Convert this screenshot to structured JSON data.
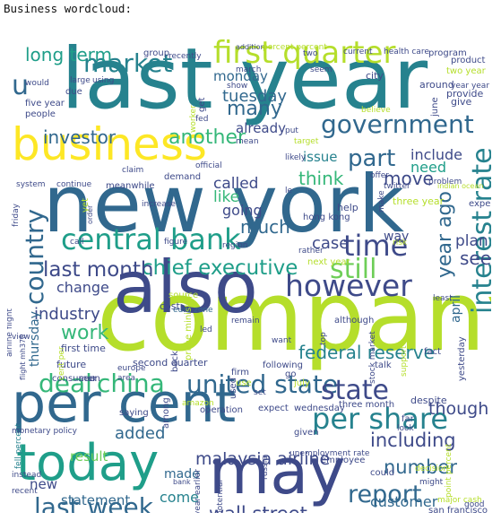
{
  "caption": "Business wordcloud:",
  "palette": [
    "#440154",
    "#482878",
    "#3e4a89",
    "#31688e",
    "#26828e",
    "#1f9e89",
    "#35b779",
    "#6ece58",
    "#b5de2b",
    "#fde725"
  ],
  "words": [
    {
      "text": "company",
      "c": "#b5de2b"
    },
    {
      "text": "last year",
      "c": "#26828e"
    },
    {
      "text": "new york",
      "c": "#31688e"
    },
    {
      "text": "also",
      "c": "#3e4a89"
    },
    {
      "text": "may",
      "c": "#3e4a89"
    },
    {
      "text": "per cent",
      "c": "#31688e"
    },
    {
      "text": "today",
      "c": "#1f9e89"
    },
    {
      "text": "business",
      "c": "#fde725"
    },
    {
      "text": "first quarter",
      "c": "#b5de2b"
    },
    {
      "text": "interest rate",
      "c": "#26828e"
    },
    {
      "text": "central bank",
      "c": "#1f9e89"
    },
    {
      "text": "market",
      "c": "#26828e"
    },
    {
      "text": "government",
      "c": "#31688e"
    },
    {
      "text": "however",
      "c": "#3e4a89"
    },
    {
      "text": "china",
      "c": "#35b779"
    },
    {
      "text": "united state",
      "c": "#31688e"
    },
    {
      "text": "per share",
      "c": "#26828e"
    },
    {
      "text": "country",
      "c": "#31688e"
    },
    {
      "text": "deal",
      "c": "#35b779"
    },
    {
      "text": "last week",
      "c": "#31688e"
    },
    {
      "text": "time",
      "c": "#3e4a89"
    },
    {
      "text": "chief executive",
      "c": "#1f9e89"
    },
    {
      "text": "still",
      "c": "#6ece58"
    },
    {
      "text": "part",
      "c": "#31688e"
    },
    {
      "text": "state",
      "c": "#3e4a89"
    },
    {
      "text": "report",
      "c": "#31688e"
    },
    {
      "text": "last month",
      "c": "#3e4a89"
    },
    {
      "text": "year ago",
      "c": "#31688e"
    },
    {
      "text": "investor",
      "c": "#31688e"
    },
    {
      "text": "another",
      "c": "#35b779"
    },
    {
      "text": "number",
      "c": "#31688e"
    },
    {
      "text": "including",
      "c": "#3e4a89"
    },
    {
      "text": "wall street",
      "c": "#3e4a89"
    },
    {
      "text": "work",
      "c": "#35b779"
    },
    {
      "text": "many",
      "c": "#31688e"
    },
    {
      "text": "long term",
      "c": "#1f9e89"
    },
    {
      "text": "tuesday",
      "c": "#31688e"
    },
    {
      "text": "malaysia airline",
      "c": "#3e4a89"
    },
    {
      "text": "federal reserve",
      "c": "#26828e"
    },
    {
      "text": "move",
      "c": "#3e4a89"
    },
    {
      "text": "think",
      "c": "#35b779"
    },
    {
      "text": "like",
      "c": "#35b779"
    },
    {
      "text": "much",
      "c": "#31688e"
    },
    {
      "text": "going",
      "c": "#3e4a89"
    },
    {
      "text": "called",
      "c": "#3e4a89"
    },
    {
      "text": "case",
      "c": "#3e4a89"
    },
    {
      "text": "see",
      "c": "#3e4a89"
    },
    {
      "text": "plan",
      "c": "#3e4a89"
    },
    {
      "text": "come",
      "c": "#26828e"
    },
    {
      "text": "added",
      "c": "#31688e"
    },
    {
      "text": "customer",
      "c": "#31688e"
    },
    {
      "text": "though",
      "c": "#3e4a89"
    },
    {
      "text": "industry",
      "c": "#3e4a89"
    },
    {
      "text": "change",
      "c": "#3e4a89"
    },
    {
      "text": "monday",
      "c": "#31688e"
    },
    {
      "text": "already",
      "c": "#3e4a89"
    },
    {
      "text": "issue",
      "c": "#26828e"
    },
    {
      "text": "include",
      "c": "#3e4a89"
    },
    {
      "text": "need",
      "c": "#1f9e89"
    },
    {
      "text": "u",
      "c": "#31688e"
    },
    {
      "text": "statement",
      "c": "#31688e"
    },
    {
      "text": "made",
      "c": "#31688e"
    },
    {
      "text": "result",
      "c": "#6ece58"
    },
    {
      "text": "thursday",
      "c": "#31688e"
    },
    {
      "text": "way",
      "c": "#3e4a89"
    },
    {
      "text": "april",
      "c": "#31688e"
    },
    {
      "text": "new",
      "c": "#3e4a89"
    },
    {
      "text": "fell percent",
      "c": "#26828e"
    },
    {
      "text": "source",
      "c": "#b5de2b"
    },
    {
      "text": "euro zone",
      "c": "#31688e"
    },
    {
      "text": "cost",
      "c": "#3e4a89"
    },
    {
      "text": "second quarter",
      "c": "#3e4a89"
    },
    {
      "text": "first time",
      "c": "#3e4a89"
    },
    {
      "text": "future",
      "c": "#3e4a89"
    },
    {
      "text": "consumer",
      "c": "#3e4a89"
    },
    {
      "text": "europe",
      "c": "#3e4a89"
    },
    {
      "text": "area",
      "c": "#3e4a89"
    },
    {
      "text": "back",
      "c": "#3e4a89"
    },
    {
      "text": "following",
      "c": "#3e4a89"
    },
    {
      "text": "expect",
      "c": "#3e4a89"
    },
    {
      "text": "wednesday",
      "c": "#3e4a89"
    },
    {
      "text": "three month",
      "c": "#3e4a89"
    },
    {
      "text": "despite",
      "c": "#3e4a89"
    },
    {
      "text": "yesterday",
      "c": "#3e4a89"
    },
    {
      "text": "far",
      "c": "#3e4a89"
    },
    {
      "text": "look",
      "c": "#3e4a89"
    },
    {
      "text": "unemployment rate",
      "c": "#3e4a89"
    },
    {
      "text": "employee",
      "c": "#3e4a89"
    },
    {
      "text": "could",
      "c": "#3e4a89"
    },
    {
      "text": "decision",
      "c": "#b5de2b"
    },
    {
      "text": "might",
      "c": "#3e4a89"
    },
    {
      "text": "major cash",
      "c": "#b5de2b"
    },
    {
      "text": "good",
      "c": "#3e4a89"
    },
    {
      "text": "san francisco",
      "c": "#3e4a89"
    },
    {
      "text": "point percent",
      "c": "#b5de2b"
    },
    {
      "text": "given",
      "c": "#3e4a89"
    },
    {
      "text": "potential",
      "c": "#3e4a89"
    },
    {
      "text": "bank",
      "c": "#3e4a89"
    },
    {
      "text": "year earlier",
      "c": "#3e4a89"
    },
    {
      "text": "russia",
      "c": "#3e4a89"
    },
    {
      "text": "among",
      "c": "#3e4a89"
    },
    {
      "text": "saying",
      "c": "#3e4a89"
    },
    {
      "text": "amazon",
      "c": "#b5de2b"
    },
    {
      "text": "operation",
      "c": "#3e4a89"
    },
    {
      "text": "monetary policy",
      "c": "#3e4a89"
    },
    {
      "text": "instead",
      "c": "#3e4a89"
    },
    {
      "text": "recent",
      "c": "#3e4a89"
    },
    {
      "text": "day",
      "c": "#3e4a89"
    },
    {
      "text": "uk",
      "c": "#3e4a89"
    },
    {
      "text": "seen",
      "c": "#3e4a89"
    },
    {
      "text": "cent per",
      "c": "#b5de2b"
    },
    {
      "text": "prime minister",
      "c": "#b5de2b"
    },
    {
      "text": "firm",
      "c": "#3e4a89"
    },
    {
      "text": "use",
      "c": "#b5de2b"
    },
    {
      "text": "used",
      "c": "#3e4a89"
    },
    {
      "text": "july",
      "c": "#b5de2b"
    },
    {
      "text": "go",
      "c": "#3e4a89"
    },
    {
      "text": "talk",
      "c": "#3e4a89"
    },
    {
      "text": "fact",
      "c": "#3e4a89"
    },
    {
      "text": "stock market",
      "c": "#3e4a89"
    },
    {
      "text": "support",
      "c": "#b5de2b"
    },
    {
      "text": "top",
      "c": "#3e4a89"
    },
    {
      "text": "set",
      "c": "#3e4a89"
    },
    {
      "text": "flight mh370",
      "c": "#3e4a89"
    },
    {
      "text": "airline flight",
      "c": "#3e4a89"
    },
    {
      "text": "view",
      "c": "#3e4a89"
    },
    {
      "text": "want",
      "c": "#3e4a89"
    },
    {
      "text": "remain",
      "c": "#3e4a89"
    },
    {
      "text": "led",
      "c": "#3e4a89"
    },
    {
      "text": "although",
      "c": "#3e4a89"
    },
    {
      "text": "rather",
      "c": "#3e4a89"
    },
    {
      "text": "least",
      "c": "#3e4a89"
    },
    {
      "text": "next year",
      "c": "#b5de2b"
    },
    {
      "text": "hong kong",
      "c": "#3e4a89"
    },
    {
      "text": "risk",
      "c": "#b5de2b"
    },
    {
      "text": "region",
      "c": "#3e4a89"
    },
    {
      "text": "figure",
      "c": "#3e4a89"
    },
    {
      "text": "call",
      "c": "#3e4a89"
    },
    {
      "text": "increase",
      "c": "#3e4a89"
    },
    {
      "text": "yet",
      "c": "#b5de2b"
    },
    {
      "text": "friday",
      "c": "#3e4a89"
    },
    {
      "text": "system",
      "c": "#3e4a89"
    },
    {
      "text": "continue",
      "c": "#3e4a89"
    },
    {
      "text": "meanwhile",
      "c": "#3e4a89"
    },
    {
      "text": "demand",
      "c": "#3e4a89"
    },
    {
      "text": "official",
      "c": "#3e4a89"
    },
    {
      "text": "claim",
      "c": "#3e4a89"
    },
    {
      "text": "le",
      "c": "#3e4a89"
    },
    {
      "text": "help",
      "c": "#3e4a89"
    },
    {
      "text": "make",
      "c": "#3e4a89"
    },
    {
      "text": "three year",
      "c": "#b5de2b"
    },
    {
      "text": "problem",
      "c": "#3e4a89"
    },
    {
      "text": "expected",
      "c": "#3e4a89"
    },
    {
      "text": "offer",
      "c": "#3e4a89"
    },
    {
      "text": "twitter",
      "c": "#3e4a89"
    },
    {
      "text": "likely",
      "c": "#3e4a89"
    },
    {
      "text": "put",
      "c": "#3e4a89"
    },
    {
      "text": "fed",
      "c": "#3e4a89"
    },
    {
      "text": "mean",
      "c": "#3e4a89"
    },
    {
      "text": "target",
      "c": "#b5de2b"
    },
    {
      "text": "worker",
      "c": "#b5de2b"
    },
    {
      "text": "believe",
      "c": "#b5de2b"
    },
    {
      "text": "june",
      "c": "#3e4a89"
    },
    {
      "text": "provide",
      "c": "#3e4a89"
    },
    {
      "text": "give",
      "c": "#3e4a89"
    },
    {
      "text": "around",
      "c": "#3e4a89"
    },
    {
      "text": "year year",
      "c": "#3e4a89"
    },
    {
      "text": "two year",
      "c": "#b5de2b"
    },
    {
      "text": "product",
      "c": "#3e4a89"
    },
    {
      "text": "program",
      "c": "#3e4a89"
    },
    {
      "text": "health care",
      "c": "#3e4a89"
    },
    {
      "text": "current",
      "c": "#3e4a89"
    },
    {
      "text": "addition",
      "c": "#3e4a89"
    },
    {
      "text": "percent percent",
      "c": "#b5de2b"
    },
    {
      "text": "recently",
      "c": "#3e4a89"
    },
    {
      "text": "group",
      "c": "#3e4a89"
    },
    {
      "text": "would",
      "c": "#3e4a89"
    },
    {
      "text": "large",
      "c": "#3e4a89"
    },
    {
      "text": "using",
      "c": "#3e4a89"
    },
    {
      "text": "due",
      "c": "#3e4a89"
    },
    {
      "text": "five year",
      "c": "#3e4a89"
    },
    {
      "text": "people",
      "c": "#3e4a89"
    },
    {
      "text": "get",
      "c": "#3e4a89"
    },
    {
      "text": "show",
      "c": "#3e4a89"
    },
    {
      "text": "march",
      "c": "#3e4a89"
    },
    {
      "text": "seem",
      "c": "#3e4a89"
    },
    {
      "text": "city",
      "c": "#3e4a89"
    },
    {
      "text": "two",
      "c": "#3e4a89"
    },
    {
      "text": "order",
      "c": "#3e4a89"
    },
    {
      "text": "indian ocean",
      "c": "#b5de2b"
    },
    {
      "text": "sure percent",
      "c": "#b5de2b"
    }
  ]
}
